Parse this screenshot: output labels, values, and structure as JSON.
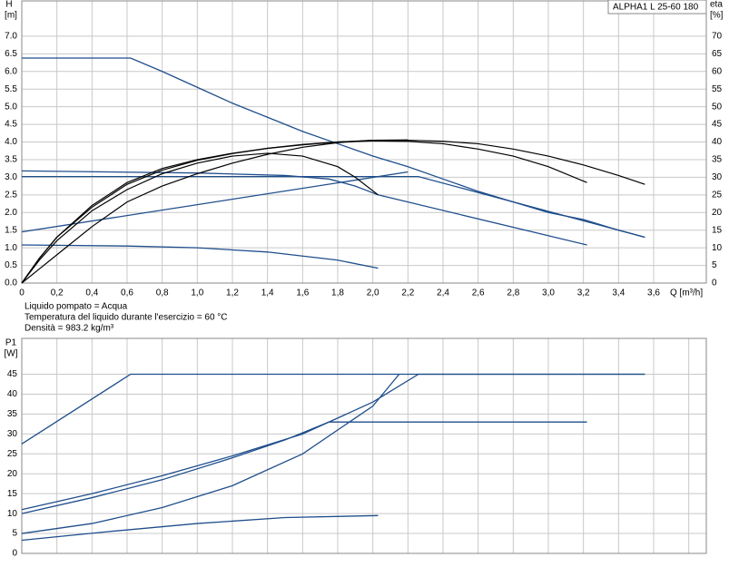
{
  "chart_data": [
    {
      "type": "line",
      "ylabel": "H",
      "yunit": "[m]",
      "y2label": "eta",
      "y2unit": "[%]",
      "xlabel": "Q [m³/h]",
      "legend": "ALPHA1 L 25-60  180",
      "notes": [
        "Liquido pompato = Acqua",
        "Temperatura del liquido durante l'esercizio = 60 °C",
        "Densità = 983.2 kg/m³"
      ],
      "xlim": [
        0,
        3.9
      ],
      "ylim": [
        0,
        8
      ],
      "y2lim": [
        0,
        80
      ],
      "grid": true,
      "show_xtick_labels": true,
      "xticks": [
        0,
        {
          "value": 0.2,
          "label": "0,2"
        },
        {
          "value": 0.4,
          "label": "0,4"
        },
        {
          "value": 0.6,
          "label": "0,6"
        },
        {
          "value": 0.8,
          "label": "0,8"
        },
        {
          "value": 1.0,
          "label": "1,0"
        },
        {
          "value": 1.2,
          "label": "1,2"
        },
        {
          "value": 1.4,
          "label": "1,4"
        },
        {
          "value": 1.6,
          "label": "1,6"
        },
        {
          "value": 1.8,
          "label": "1,8"
        },
        {
          "value": 2.0,
          "label": "2,0"
        },
        {
          "value": 2.2,
          "label": "2,2"
        },
        {
          "value": 2.4,
          "label": "2,4"
        },
        {
          "value": 2.6,
          "label": "2,6"
        },
        {
          "value": 2.8,
          "label": "2,8"
        },
        {
          "value": 3.0,
          "label": "3,0"
        },
        {
          "value": 3.2,
          "label": "3,2"
        },
        {
          "value": 3.4,
          "label": "3,4"
        },
        {
          "value": 3.6,
          "label": "3,6"
        }
      ],
      "yticks": [
        {
          "value": 0,
          "label": "0.0"
        },
        0.5,
        {
          "value": 1,
          "label": "1.0"
        },
        1.5,
        {
          "value": 2,
          "label": "2.0"
        },
        2.5,
        {
          "value": 3,
          "label": "3.0"
        },
        3.5,
        {
          "value": 4,
          "label": "4.0"
        },
        4.5,
        {
          "value": 5,
          "label": "5.0"
        },
        5.5,
        {
          "value": 6,
          "label": "6.0"
        },
        6.5,
        {
          "value": 7,
          "label": "7.0"
        }
      ],
      "y2ticks": [
        0,
        5,
        10,
        15,
        20,
        25,
        30,
        35,
        40,
        45,
        50,
        55,
        60,
        65,
        70
      ],
      "series": [
        {
          "color": "#1f4e8c",
          "x": [
            0,
            0.62,
            0.8,
            1.0,
            1.2,
            1.4,
            1.6,
            1.8,
            2.0,
            2.2,
            2.4,
            2.6,
            2.8,
            3.0,
            3.2,
            3.4,
            3.55
          ],
          "values": [
            6.38,
            6.38,
            6.0,
            5.55,
            5.1,
            4.7,
            4.3,
            3.95,
            3.6,
            3.3,
            2.95,
            2.6,
            2.3,
            2.0,
            1.8,
            1.5,
            1.3
          ]
        },
        {
          "color": "#1f4e8c",
          "x": [
            0,
            1.0,
            1.5,
            1.75,
            1.9,
            2.03,
            3.22
          ],
          "values": [
            3.18,
            3.12,
            3.05,
            2.95,
            2.75,
            2.5,
            1.08
          ]
        },
        {
          "color": "#1f4e8c",
          "x": [
            0,
            2.26,
            3.55
          ],
          "values": [
            3.02,
            3.02,
            1.3
          ]
        },
        {
          "color": "#1f4e8c",
          "x": [
            0,
            2.2
          ],
          "values": [
            1.45,
            3.15
          ]
        },
        {
          "color": "#1f4e8c",
          "x": [
            0,
            0.6,
            1.0,
            1.4,
            1.8,
            2.03
          ],
          "values": [
            1.08,
            1.05,
            1.0,
            0.88,
            0.65,
            0.42
          ]
        },
        {
          "color": "#000000",
          "axis": "y2",
          "x": [
            0,
            0.1,
            0.2,
            0.4,
            0.6,
            0.8,
            1.0,
            1.2,
            1.4,
            1.6,
            1.8,
            2.0,
            2.2,
            2.4,
            2.6,
            2.8,
            3.0,
            3.2,
            3.4,
            3.55
          ],
          "values": [
            0,
            7,
            13,
            22,
            28.5,
            32.5,
            35,
            36.8,
            38.2,
            39.2,
            40,
            40.5,
            40.5,
            40.2,
            39.5,
            38,
            36,
            33.5,
            30.5,
            28
          ]
        },
        {
          "color": "#000000",
          "axis": "y2",
          "x": [
            0,
            0.1,
            0.2,
            0.4,
            0.6,
            0.8,
            1.0,
            1.2,
            1.4,
            1.6,
            1.8,
            2.0,
            2.2,
            2.4,
            2.6,
            2.8,
            3.0,
            3.22
          ],
          "values": [
            0,
            7,
            13,
            21.5,
            28,
            32,
            34.8,
            36.7,
            38.2,
            39.3,
            40,
            40.3,
            40.2,
            39.5,
            38,
            36,
            33,
            28.5
          ]
        },
        {
          "color": "#000000",
          "axis": "y2",
          "x": [
            0,
            0.1,
            0.2,
            0.4,
            0.6,
            0.8,
            1.0,
            1.2,
            1.4,
            1.6,
            1.8,
            1.9,
            2.03
          ],
          "values": [
            0,
            6.5,
            12,
            20.5,
            26.5,
            31,
            34,
            36,
            36.8,
            36,
            33,
            30,
            25
          ]
        },
        {
          "color": "#000000",
          "axis": "y2",
          "x": [
            0,
            0.1,
            0.2,
            0.4,
            0.6,
            0.8,
            1.0,
            1.2,
            1.4,
            1.6,
            1.8,
            2.0,
            2.2
          ],
          "values": [
            0,
            4,
            8,
            16,
            23,
            27.5,
            31,
            34,
            36.5,
            38.5,
            39.8,
            40.5,
            40.6
          ]
        }
      ]
    },
    {
      "type": "line",
      "ylabel": "P1",
      "yunit": "[W]",
      "xlim": [
        0,
        3.9
      ],
      "ylim": [
        0,
        54
      ],
      "grid": true,
      "show_xtick_labels": false,
      "xticks": [
        0,
        0.2,
        0.4,
        0.6,
        0.8,
        1.0,
        1.2,
        1.4,
        1.6,
        1.8,
        2.0,
        2.2,
        2.4,
        2.6,
        2.8,
        3.0,
        3.2,
        3.4,
        3.6,
        3.8
      ],
      "yticks": [
        0,
        5,
        10,
        15,
        20,
        25,
        30,
        35,
        40,
        45
      ],
      "series": [
        {
          "color": "#1f4e8c",
          "x": [
            0,
            0.62,
            3.55
          ],
          "values": [
            27.5,
            45,
            45
          ]
        },
        {
          "color": "#1f4e8c",
          "x": [
            0,
            0.4,
            0.8,
            1.2,
            1.6,
            2.0,
            2.26,
            3.55
          ],
          "values": [
            11,
            15,
            19.5,
            24.5,
            30,
            38,
            45,
            45
          ]
        },
        {
          "color": "#1f4e8c",
          "x": [
            0,
            0.4,
            0.8,
            1.2,
            1.5,
            1.75,
            3.22
          ],
          "values": [
            10,
            14,
            18.5,
            24,
            28.5,
            33,
            33
          ]
        },
        {
          "color": "#1f4e8c",
          "x": [
            0,
            0.4,
            0.8,
            1.2,
            1.6,
            2.0,
            2.15
          ],
          "values": [
            5,
            7.5,
            11.5,
            17,
            25,
            37,
            45
          ]
        },
        {
          "color": "#1f4e8c",
          "x": [
            0,
            0.5,
            1.0,
            1.5,
            2.03
          ],
          "values": [
            3.3,
            5.5,
            7.5,
            9,
            9.5
          ]
        }
      ]
    }
  ]
}
